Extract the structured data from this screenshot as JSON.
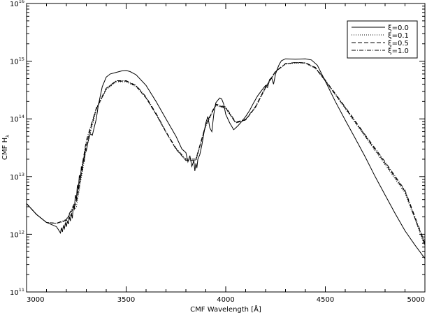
{
  "chart_data": {
    "type": "line",
    "title": "",
    "xlabel": "CMF Wavelength [Å]",
    "ylabel": "CMF H",
    "ylabel_subscript": "λ",
    "xlim": [
      3000,
      5000
    ],
    "ylim": [
      100000000000.0,
      1e+16
    ],
    "yscale": "log",
    "grid": false,
    "legend_position": "top-right",
    "x_ticks": [
      3000,
      3500,
      4000,
      4500,
      5000
    ],
    "x_tick_labels": [
      "3000",
      "3500",
      "4000",
      "4500",
      "5000"
    ],
    "y_ticks": [
      11,
      12,
      13,
      14,
      15,
      16
    ],
    "y_tick_base": "10",
    "y_tick_exponents": [
      "11",
      "12",
      "13",
      "14",
      "15",
      "16"
    ],
    "series": [
      {
        "name": "ξ=0.0",
        "dash": "solid",
        "x": [
          3000,
          3050,
          3100,
          3130,
          3150,
          3160,
          3170,
          3175,
          3180,
          3185,
          3190,
          3195,
          3200,
          3205,
          3210,
          3215,
          3220,
          3225,
          3230,
          3235,
          3240,
          3245,
          3250,
          3255,
          3260,
          3265,
          3270,
          3275,
          3280,
          3285,
          3290,
          3295,
          3300,
          3310,
          3320,
          3330,
          3340,
          3350,
          3360,
          3380,
          3400,
          3420,
          3450,
          3480,
          3500,
          3520,
          3550,
          3600,
          3650,
          3700,
          3750,
          3780,
          3800,
          3810,
          3820,
          3830,
          3840,
          3845,
          3850,
          3855,
          3860,
          3870,
          3880,
          3890,
          3900,
          3910,
          3920,
          3930,
          3940,
          3950,
          3960,
          3970,
          3980,
          3990,
          4000,
          4020,
          4040,
          4060,
          4080,
          4100,
          4120,
          4140,
          4160,
          4180,
          4200,
          4210,
          4220,
          4230,
          4240,
          4250,
          4260,
          4270,
          4280,
          4300,
          4350,
          4400,
          4430,
          4460,
          4500,
          4550,
          4600,
          4650,
          4700,
          4750,
          4800,
          4850,
          4900,
          4950,
          5000
        ],
        "y": [
          3400000000000.0,
          2200000000000.0,
          1600000000000.0,
          1450000000000.0,
          1350000000000.0,
          1200000000000.0,
          1050000000000.0,
          1300000000000.0,
          1100000000000.0,
          1400000000000.0,
          1250000000000.0,
          1600000000000.0,
          1350000000000.0,
          1700000000000.0,
          1500000000000.0,
          2000000000000.0,
          1700000000000.0,
          2300000000000.0,
          1900000000000.0,
          3200000000000.0,
          2700000000000.0,
          4800000000000.0,
          4000000000000.0,
          7200000000000.0,
          6000000000000.0,
          10500000000000.0,
          8800000000000.0,
          15000000000000.0,
          12500000000000.0,
          21000000000000.0,
          18000000000000.0,
          31000000000000.0,
          28000000000000.0,
          42000000000000.0,
          55000000000000.0,
          52000000000000.0,
          72000000000000.0,
          100000000000000.0,
          170000000000000.0,
          360000000000000.0,
          530000000000000.0,
          600000000000000.0,
          640000000000000.0,
          680000000000000.0,
          690000000000000.0,
          660000000000000.0,
          580000000000000.0,
          380000000000000.0,
          200000000000000.0,
          100000000000000.0,
          50000000000000.0,
          30000000000000.0,
          26000000000000.0,
          18000000000000.0,
          23000000000000.0,
          15000000000000.0,
          19000000000000.0,
          12500000000000.0,
          17000000000000.0,
          14000000000000.0,
          20000000000000.0,
          24000000000000.0,
          35000000000000.0,
          55000000000000.0,
          85000000000000.0,
          110000000000000.0,
          70000000000000.0,
          60000000000000.0,
          120000000000000.0,
          190000000000000.0,
          210000000000000.0,
          230000000000000.0,
          220000000000000.0,
          180000000000000.0,
          120000000000000.0,
          85000000000000.0,
          65000000000000.0,
          75000000000000.0,
          90000000000000.0,
          110000000000000.0,
          140000000000000.0,
          190000000000000.0,
          250000000000000.0,
          310000000000000.0,
          380000000000000.0,
          350000000000000.0,
          480000000000000.0,
          520000000000000.0,
          400000000000000.0,
          600000000000000.0,
          750000000000000.0,
          900000000000000.0,
          1020000000000000.0,
          1100000000000000.0,
          1080000000000000.0,
          1100000000000000.0,
          1050000000000000.0,
          850000000000000.0,
          450000000000000.0,
          200000000000000.0,
          95000000000000.0,
          46000000000000.0,
          22000000000000.0,
          10000000000000.0,
          4800000000000.0,
          2300000000000.0,
          1150000000000.0,
          650000000000.0,
          380000000000.0
        ]
      },
      {
        "name": "ξ=0.1",
        "dash": "dotted",
        "x": [
          3000,
          3050,
          3100,
          3150,
          3200,
          3250,
          3300,
          3350,
          3400,
          3450,
          3500,
          3550,
          3600,
          3650,
          3700,
          3750,
          3800,
          3850,
          3900,
          3950,
          4000,
          4050,
          4100,
          4150,
          4200,
          4250,
          4300,
          4350,
          4400,
          4450,
          4500,
          4600,
          4700,
          4800,
          4900,
          5000
        ],
        "y": [
          3400000000000.0,
          2200000000000.0,
          1600000000000.0,
          1550000000000.0,
          1700000000000.0,
          3000000000000.0,
          30000000000000.0,
          145000000000000.0,
          320000000000000.0,
          440000000000000.0,
          440000000000000.0,
          360000000000000.0,
          230000000000000.0,
          120000000000000.0,
          58000000000000.0,
          30000000000000.0,
          19000000000000.0,
          19000000000000.0,
          75000000000000.0,
          170000000000000.0,
          150000000000000.0,
          85000000000000.0,
          95000000000000.0,
          160000000000000.0,
          340000000000000.0,
          650000000000000.0,
          890000000000000.0,
          930000000000000.0,
          920000000000000.0,
          750000000000000.0,
          450000000000000.0,
          150000000000000.0,
          49000000000000.0,
          16000000000000.0,
          5200000000000.0,
          630000000000.0
        ]
      },
      {
        "name": "ξ=0.5",
        "dash": "dashed",
        "x": [
          3000,
          3050,
          3100,
          3150,
          3200,
          3250,
          3300,
          3350,
          3400,
          3450,
          3500,
          3550,
          3600,
          3650,
          3700,
          3750,
          3800,
          3850,
          3900,
          3950,
          4000,
          4050,
          4100,
          4150,
          4200,
          4250,
          4300,
          4350,
          4400,
          4450,
          4500,
          4600,
          4700,
          4800,
          4900,
          5000
        ],
        "y": [
          3400000000000.0,
          2200000000000.0,
          1600000000000.0,
          1550000000000.0,
          1750000000000.0,
          3500000000000.0,
          36000000000000.0,
          150000000000000.0,
          330000000000000.0,
          450000000000000.0,
          450000000000000.0,
          370000000000000.0,
          230000000000000.0,
          120000000000000.0,
          59000000000000.0,
          30000000000000.0,
          19000000000000.0,
          19000000000000.0,
          78000000000000.0,
          175000000000000.0,
          155000000000000.0,
          85000000000000.0,
          96000000000000.0,
          160000000000000.0,
          350000000000000.0,
          660000000000000.0,
          900000000000000.0,
          940000000000000.0,
          930000000000000.0,
          760000000000000.0,
          460000000000000.0,
          155000000000000.0,
          51000000000000.0,
          17000000000000.0,
          5500000000000.0,
          660000000000.0
        ]
      },
      {
        "name": "ξ=1.0",
        "dash": "dashdot",
        "x": [
          3000,
          3050,
          3100,
          3150,
          3200,
          3250,
          3300,
          3350,
          3400,
          3450,
          3500,
          3550,
          3600,
          3650,
          3700,
          3750,
          3800,
          3850,
          3900,
          3950,
          4000,
          4050,
          4100,
          4150,
          4200,
          4250,
          4300,
          4350,
          4400,
          4450,
          4500,
          4600,
          4700,
          4800,
          4900,
          5000
        ],
        "y": [
          3400000000000.0,
          2200000000000.0,
          1600000000000.0,
          1550000000000.0,
          1800000000000.0,
          4000000000000.0,
          42000000000000.0,
          155000000000000.0,
          340000000000000.0,
          460000000000000.0,
          460000000000000.0,
          380000000000000.0,
          240000000000000.0,
          125000000000000.0,
          60000000000000.0,
          31000000000000.0,
          20000000000000.0,
          20000000000000.0,
          80000000000000.0,
          180000000000000.0,
          160000000000000.0,
          88000000000000.0,
          98000000000000.0,
          165000000000000.0,
          360000000000000.0,
          670000000000000.0,
          910000000000000.0,
          950000000000000.0,
          940000000000000.0,
          780000000000000.0,
          470000000000000.0,
          160000000000000.0,
          53000000000000.0,
          18000000000000.0,
          5800000000000.0,
          700000000000.0
        ]
      }
    ]
  }
}
